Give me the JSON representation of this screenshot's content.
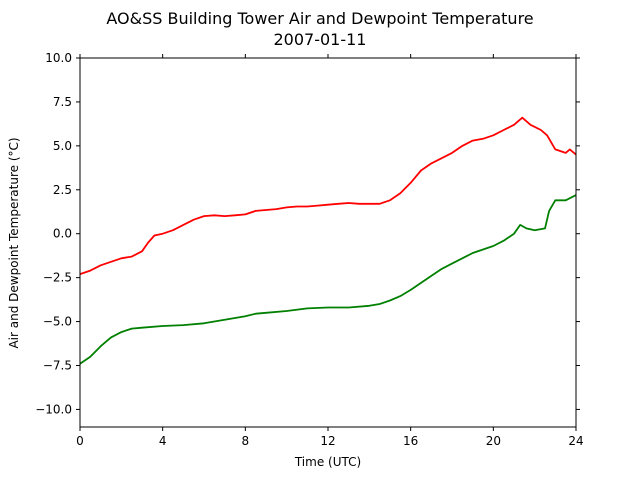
{
  "chart_data": {
    "type": "line",
    "title": "AO&SS Building Tower Air and Dewpoint Temperature",
    "subtitle": "2007-01-11",
    "xlabel": "Time (UTC)",
    "ylabel": "Air and Dewpoint Temperature (°C)",
    "xlim": [
      0,
      24
    ],
    "ylim": [
      -11,
      10
    ],
    "xticks": [
      0,
      4,
      8,
      12,
      16,
      20,
      24
    ],
    "xtick_labels": [
      "0",
      "4",
      "8",
      "12",
      "16",
      "20",
      "24"
    ],
    "yticks": [
      -10,
      -7.5,
      -5,
      -2.5,
      0,
      2.5,
      5,
      7.5,
      10
    ],
    "ytick_labels": [
      "−10.0",
      "−7.5",
      "−5.0",
      "−2.5",
      "0.0",
      "2.5",
      "5.0",
      "7.5",
      "10.0"
    ],
    "grid": false,
    "series": [
      {
        "color": "#ff0000",
        "x": [
          0,
          0.5,
          1,
          1.5,
          2,
          2.5,
          3,
          3.3,
          3.6,
          4,
          4.5,
          5,
          5.5,
          6,
          6.5,
          7,
          7.5,
          8,
          8.5,
          9,
          9.5,
          10,
          10.5,
          11,
          11.5,
          12,
          12.5,
          13,
          13.5,
          14,
          14.5,
          15,
          15.5,
          16,
          16.5,
          17,
          17.5,
          18,
          18.5,
          19,
          19.5,
          20,
          20.5,
          21,
          21.4,
          21.8,
          22.3,
          22.6,
          23,
          23.5,
          23.7,
          24
        ],
        "y": [
          -2.3,
          -2.1,
          -1.8,
          -1.6,
          -1.4,
          -1.3,
          -1.0,
          -0.5,
          -0.1,
          0.0,
          0.2,
          0.5,
          0.8,
          1.0,
          1.05,
          1.0,
          1.05,
          1.1,
          1.3,
          1.35,
          1.4,
          1.5,
          1.55,
          1.55,
          1.6,
          1.65,
          1.7,
          1.75,
          1.7,
          1.7,
          1.7,
          1.9,
          2.3,
          2.9,
          3.6,
          4.0,
          4.3,
          4.6,
          5.0,
          5.3,
          5.4,
          5.6,
          5.9,
          6.2,
          6.6,
          6.2,
          5.9,
          5.6,
          4.8,
          4.6,
          4.8,
          4.5
        ]
      },
      {
        "color": "#008000",
        "x": [
          0,
          0.5,
          1,
          1.5,
          2,
          2.5,
          3,
          4,
          5,
          6,
          7,
          8,
          8.5,
          9,
          10,
          11,
          12,
          13,
          14,
          14.5,
          15,
          15.5,
          16,
          16.5,
          17,
          17.5,
          18,
          18.5,
          19,
          19.5,
          20,
          20.5,
          21,
          21.3,
          21.6,
          22,
          22.5,
          22.7,
          23,
          23.5,
          24
        ],
        "y": [
          -7.4,
          -7.0,
          -6.4,
          -5.9,
          -5.6,
          -5.4,
          -5.35,
          -5.25,
          -5.2,
          -5.1,
          -4.9,
          -4.7,
          -4.55,
          -4.5,
          -4.4,
          -4.25,
          -4.2,
          -4.2,
          -4.1,
          -4.0,
          -3.8,
          -3.55,
          -3.2,
          -2.8,
          -2.4,
          -2.0,
          -1.7,
          -1.4,
          -1.1,
          -0.9,
          -0.7,
          -0.4,
          0.0,
          0.5,
          0.3,
          0.2,
          0.3,
          1.3,
          1.9,
          1.9,
          2.2
        ]
      }
    ]
  }
}
